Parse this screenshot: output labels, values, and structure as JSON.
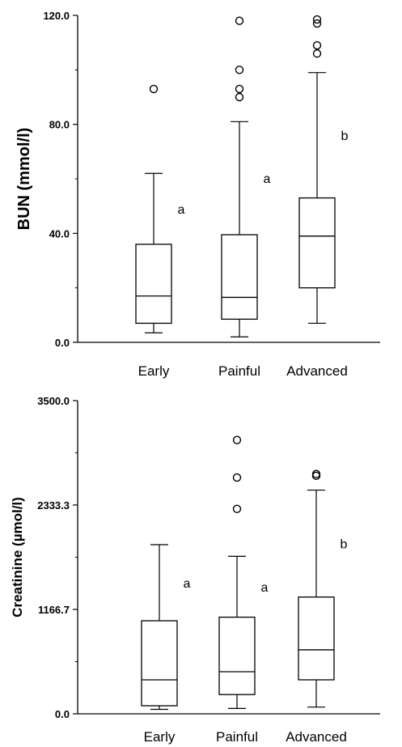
{
  "chart_data": [
    {
      "type": "box",
      "xlabel": "",
      "ylabel": "BUN (mmol/l)",
      "ylim": [
        0,
        120
      ],
      "yticks": [
        0,
        40,
        80,
        120
      ],
      "ytick_labels": [
        "0.0",
        "40.0",
        "80.0",
        "120.0"
      ],
      "categories": [
        "Early",
        "Painful",
        "Advanced"
      ],
      "boxes": [
        {
          "category": "Early",
          "whisker_low": 3.5,
          "q1": 7,
          "median": 17,
          "q3": 36,
          "whisker_high": 62,
          "outliers": [
            93
          ],
          "letter": "a"
        },
        {
          "category": "Painful",
          "whisker_low": 2,
          "q1": 8.5,
          "median": 16.5,
          "q3": 39.5,
          "whisker_high": 81,
          "outliers": [
            90,
            93,
            100,
            118
          ],
          "letter": "a"
        },
        {
          "category": "Advanced",
          "whisker_low": 7,
          "q1": 20,
          "median": 39,
          "q3": 53,
          "whisker_high": 99,
          "outliers": [
            106,
            109,
            117,
            118.5
          ],
          "letter": "b"
        }
      ]
    },
    {
      "type": "box",
      "xlabel": "",
      "ylabel": "Creatinine (µmol/l)",
      "ylim": [
        0,
        3500
      ],
      "yticks": [
        0,
        1166.7,
        2333.3,
        3500
      ],
      "ytick_labels": [
        "0.0",
        "1166.7",
        "2333.3",
        "3500.0"
      ],
      "categories": [
        "Early",
        "Painful",
        "Advanced"
      ],
      "boxes": [
        {
          "category": "Early",
          "whisker_low": 50,
          "q1": 90,
          "median": 380,
          "q3": 1040,
          "whisker_high": 1890,
          "outliers": [],
          "letter": "a"
        },
        {
          "category": "Painful",
          "whisker_low": 60,
          "q1": 215,
          "median": 470,
          "q3": 1080,
          "whisker_high": 1760,
          "outliers": [
            2290,
            2640,
            3060
          ],
          "letter": "a"
        },
        {
          "category": "Advanced",
          "whisker_low": 75,
          "q1": 380,
          "median": 715,
          "q3": 1305,
          "whisker_high": 2500,
          "outliers": [
            2660,
            2680
          ],
          "letter": "b"
        }
      ]
    }
  ]
}
